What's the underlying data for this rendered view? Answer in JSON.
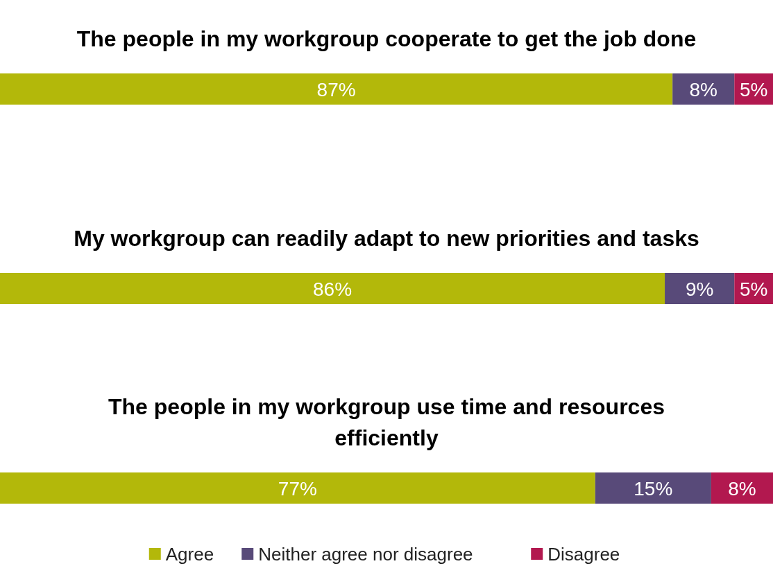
{
  "chart_data": {
    "type": "bar",
    "orientation": "horizontal",
    "stacked": true,
    "legend": "bottom",
    "categories": [
      "The people in my workgroup cooperate to get the job done",
      "My workgroup can readily adapt to new priorities and tasks",
      "The people in my workgroup use time and resources efficiently"
    ],
    "series": [
      {
        "name": "Agree",
        "color": "#b3b80a",
        "values": [
          87,
          86,
          77
        ],
        "value_labels": [
          "87%",
          "86%",
          "77%"
        ]
      },
      {
        "name": "Neither agree nor disagree",
        "color": "#584a79",
        "values": [
          8,
          9,
          15
        ],
        "value_labels": [
          "8%",
          "9%",
          "15%"
        ]
      },
      {
        "name": "Disagree",
        "color": "#b2184f",
        "values": [
          5,
          5,
          8
        ],
        "value_labels": [
          "5%",
          "5%",
          "8%"
        ]
      }
    ]
  }
}
